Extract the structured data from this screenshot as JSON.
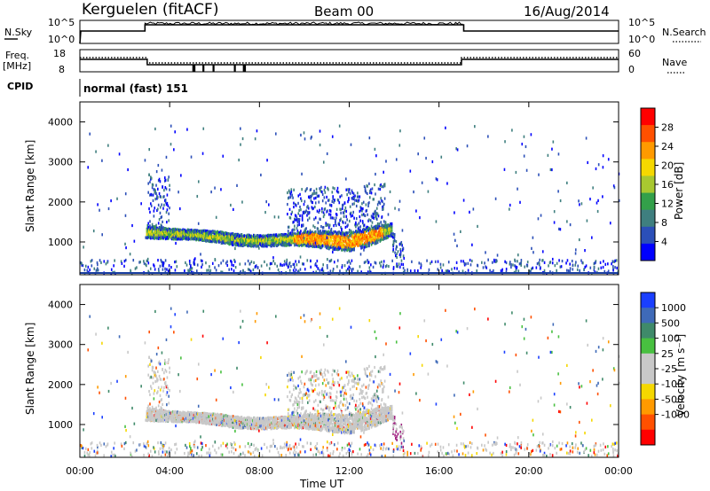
{
  "header": {
    "station": "Kerguelen (fitACF)",
    "beam": "Beam 00",
    "date": "16/Aug/2014"
  },
  "status_panels": {
    "nsky_label": "N.Sky",
    "nsearch_label": "N.Search",
    "counts_ticks_left": [
      "10^5",
      "10^0"
    ],
    "counts_ticks_right": [
      "10^5",
      "10^0"
    ],
    "freq_label_1": "Freq.",
    "freq_label_2": "[MHz]",
    "freq_ticks": [
      "18",
      "8"
    ],
    "nave_label": "Nave",
    "nave_ticks": [
      "60",
      "0"
    ],
    "cpid_label": "CPID",
    "cpid_text": "normal (fast) 151",
    "sky_noise_level": 0.55,
    "search_noise_level": 0.55
  },
  "chart_data": [
    {
      "type": "heatmap",
      "name": "power",
      "ylabel": "Slant Range [km]",
      "ylim": [
        180,
        4500
      ],
      "y_ticks": [
        1000,
        2000,
        3000,
        4000
      ],
      "x_ticks": [
        "00:00",
        "04:00",
        "08:00",
        "12:00",
        "16:00",
        "20:00",
        "00:00"
      ],
      "xlim_hours": [
        0,
        24
      ],
      "colorbar": {
        "label": "Power [dB]",
        "ticks": [
          "4",
          "8",
          "12",
          "16",
          "20",
          "24",
          "28"
        ],
        "colors": [
          "#0000ff",
          "#2b4fb8",
          "#3f7f7f",
          "#33a04a",
          "#a8c830",
          "#f5d800",
          "#ff9a00",
          "#ff5000",
          "#ff0000"
        ]
      },
      "echo_band": [
        {
          "t": 3.0,
          "r": 1250,
          "spread": 160
        },
        {
          "t": 4.0,
          "r": 1200,
          "spread": 130
        },
        {
          "t": 5.0,
          "r": 1180,
          "spread": 120
        },
        {
          "t": 6.0,
          "r": 1130,
          "spread": 140
        },
        {
          "t": 7.0,
          "r": 1050,
          "spread": 140
        },
        {
          "t": 8.0,
          "r": 1020,
          "spread": 140
        },
        {
          "t": 9.0,
          "r": 1050,
          "spread": 140
        },
        {
          "t": 10.0,
          "r": 1080,
          "spread": 180
        },
        {
          "t": 11.0,
          "r": 1050,
          "spread": 220
        },
        {
          "t": 12.0,
          "r": 1000,
          "spread": 230
        },
        {
          "t": 13.0,
          "r": 1150,
          "spread": 230
        },
        {
          "t": 13.8,
          "r": 1300,
          "spread": 160
        }
      ]
    },
    {
      "type": "heatmap",
      "name": "velocity",
      "ylabel": "Slant Range [km]",
      "ylim": [
        180,
        4500
      ],
      "y_ticks": [
        1000,
        2000,
        3000,
        4000
      ],
      "x_ticks": [
        "00:00",
        "04:00",
        "08:00",
        "12:00",
        "16:00",
        "20:00",
        "00:00"
      ],
      "xlabel": "Time UT",
      "xlim_hours": [
        0,
        24
      ],
      "colorbar": {
        "label": "Velocity [m s⁻¹]",
        "ticks": [
          "1000",
          "500",
          "100",
          "25",
          "-25",
          "-100",
          "-500",
          "-1000"
        ],
        "colors": [
          "#1a3fff",
          "#3f6ab8",
          "#3f8a6a",
          "#48c040",
          "#c8c8c8",
          "#c8c8c8",
          "#f5d800",
          "#ff9a00",
          "#ff5000",
          "#ff0000"
        ]
      }
    }
  ]
}
